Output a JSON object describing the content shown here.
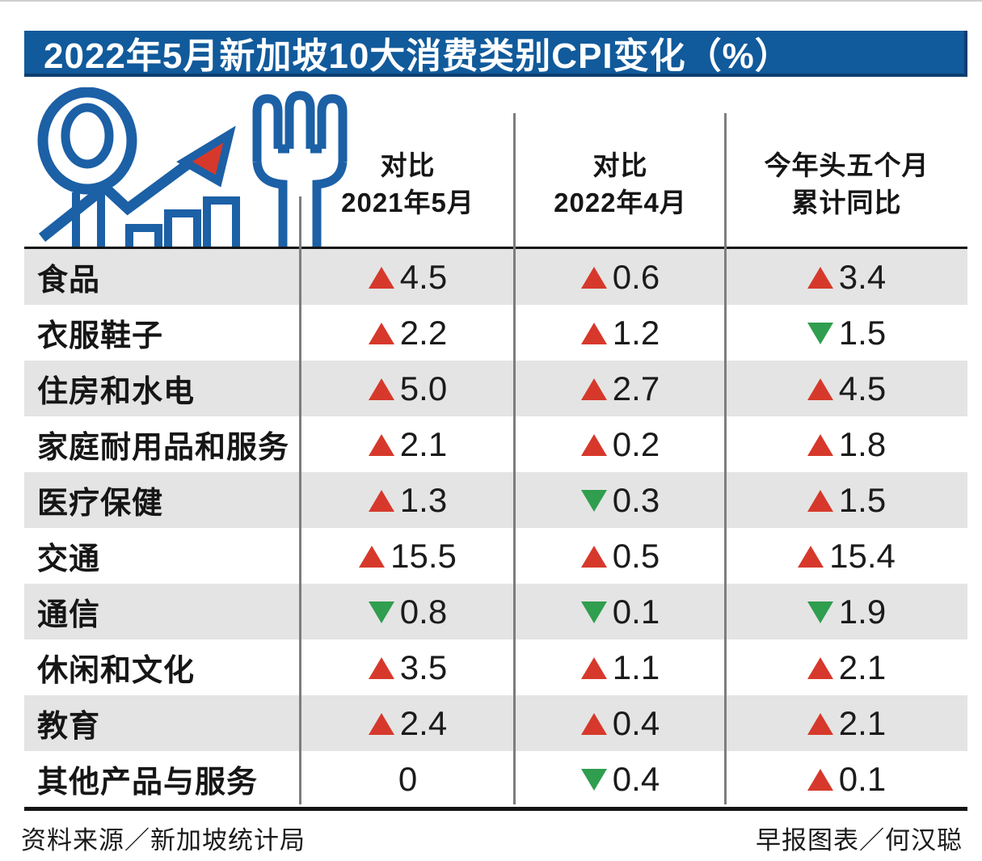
{
  "title": "2022年5月新加坡10大消费类别CPI变化（%）",
  "columns": [
    {
      "line1": "对比",
      "line2": "2021年5月"
    },
    {
      "line1": "对比",
      "line2": "2022年4月"
    },
    {
      "line1": "今年头五个月",
      "line2": "累计同比"
    }
  ],
  "rows": [
    {
      "label": "食品",
      "values": [
        {
          "dir": "up",
          "value": "4.5"
        },
        {
          "dir": "up",
          "value": "0.6"
        },
        {
          "dir": "up",
          "value": "3.4"
        }
      ]
    },
    {
      "label": "衣服鞋子",
      "values": [
        {
          "dir": "up",
          "value": "2.2"
        },
        {
          "dir": "up",
          "value": "1.2"
        },
        {
          "dir": "down",
          "value": "1.5"
        }
      ]
    },
    {
      "label": "住房和水电",
      "values": [
        {
          "dir": "up",
          "value": "5.0"
        },
        {
          "dir": "up",
          "value": "2.7"
        },
        {
          "dir": "up",
          "value": "4.5"
        }
      ]
    },
    {
      "label": "家庭耐用品和服务",
      "values": [
        {
          "dir": "up",
          "value": "2.1"
        },
        {
          "dir": "up",
          "value": "0.2"
        },
        {
          "dir": "up",
          "value": "1.8"
        }
      ]
    },
    {
      "label": "医疗保健",
      "values": [
        {
          "dir": "up",
          "value": "1.3"
        },
        {
          "dir": "down",
          "value": "0.3"
        },
        {
          "dir": "up",
          "value": "1.5"
        }
      ]
    },
    {
      "label": "交通",
      "values": [
        {
          "dir": "up",
          "value": "15.5"
        },
        {
          "dir": "up",
          "value": "0.5"
        },
        {
          "dir": "up",
          "value": "15.4"
        }
      ]
    },
    {
      "label": "通信",
      "values": [
        {
          "dir": "down",
          "value": "0.8"
        },
        {
          "dir": "down",
          "value": "0.1"
        },
        {
          "dir": "down",
          "value": "1.9"
        }
      ]
    },
    {
      "label": "休闲和文化",
      "values": [
        {
          "dir": "up",
          "value": "3.5"
        },
        {
          "dir": "up",
          "value": "1.1"
        },
        {
          "dir": "up",
          "value": "2.1"
        }
      ]
    },
    {
      "label": "教育",
      "values": [
        {
          "dir": "up",
          "value": "2.4"
        },
        {
          "dir": "up",
          "value": "0.4"
        },
        {
          "dir": "up",
          "value": "2.1"
        }
      ]
    },
    {
      "label": "其他产品与服务",
      "values": [
        {
          "dir": "none",
          "value": "0"
        },
        {
          "dir": "down",
          "value": "0.4"
        },
        {
          "dir": "up",
          "value": "0.1"
        }
      ]
    }
  ],
  "footer": {
    "left": "资料来源／新加坡统计局",
    "right": "早报图表／何汉聪"
  },
  "icon": "spoon-fork-trend-icon",
  "colors": {
    "banner_blue": "#115a9b",
    "banner_edge": "#0c3e70",
    "icon_blue": "#1c60a6",
    "up_red": "#d6392b",
    "down_green": "#2f9e4e",
    "row_gray": "#e4e4e4",
    "divider_gray": "#7d7d7d"
  },
  "chart_data": {
    "type": "table",
    "title": "2022年5月新加坡10大消费类别CPI变化（%）",
    "categories": [
      "食品",
      "衣服鞋子",
      "住房和水电",
      "家庭耐用品和服务",
      "医疗保健",
      "交通",
      "通信",
      "休闲和文化",
      "教育",
      "其他产品与服务"
    ],
    "series": [
      {
        "name": "对比2021年5月",
        "values": [
          4.5,
          2.2,
          5.0,
          2.1,
          1.3,
          15.5,
          -0.8,
          3.5,
          2.4,
          0
        ]
      },
      {
        "name": "对比2022年4月",
        "values": [
          0.6,
          1.2,
          2.7,
          0.2,
          -0.3,
          0.5,
          -0.1,
          1.1,
          0.4,
          -0.4
        ]
      },
      {
        "name": "今年头五个月累计同比",
        "values": [
          3.4,
          -1.5,
          4.5,
          1.8,
          1.5,
          15.4,
          -1.9,
          2.1,
          2.1,
          0.1
        ]
      }
    ],
    "legend_position": "none",
    "grid": false
  }
}
